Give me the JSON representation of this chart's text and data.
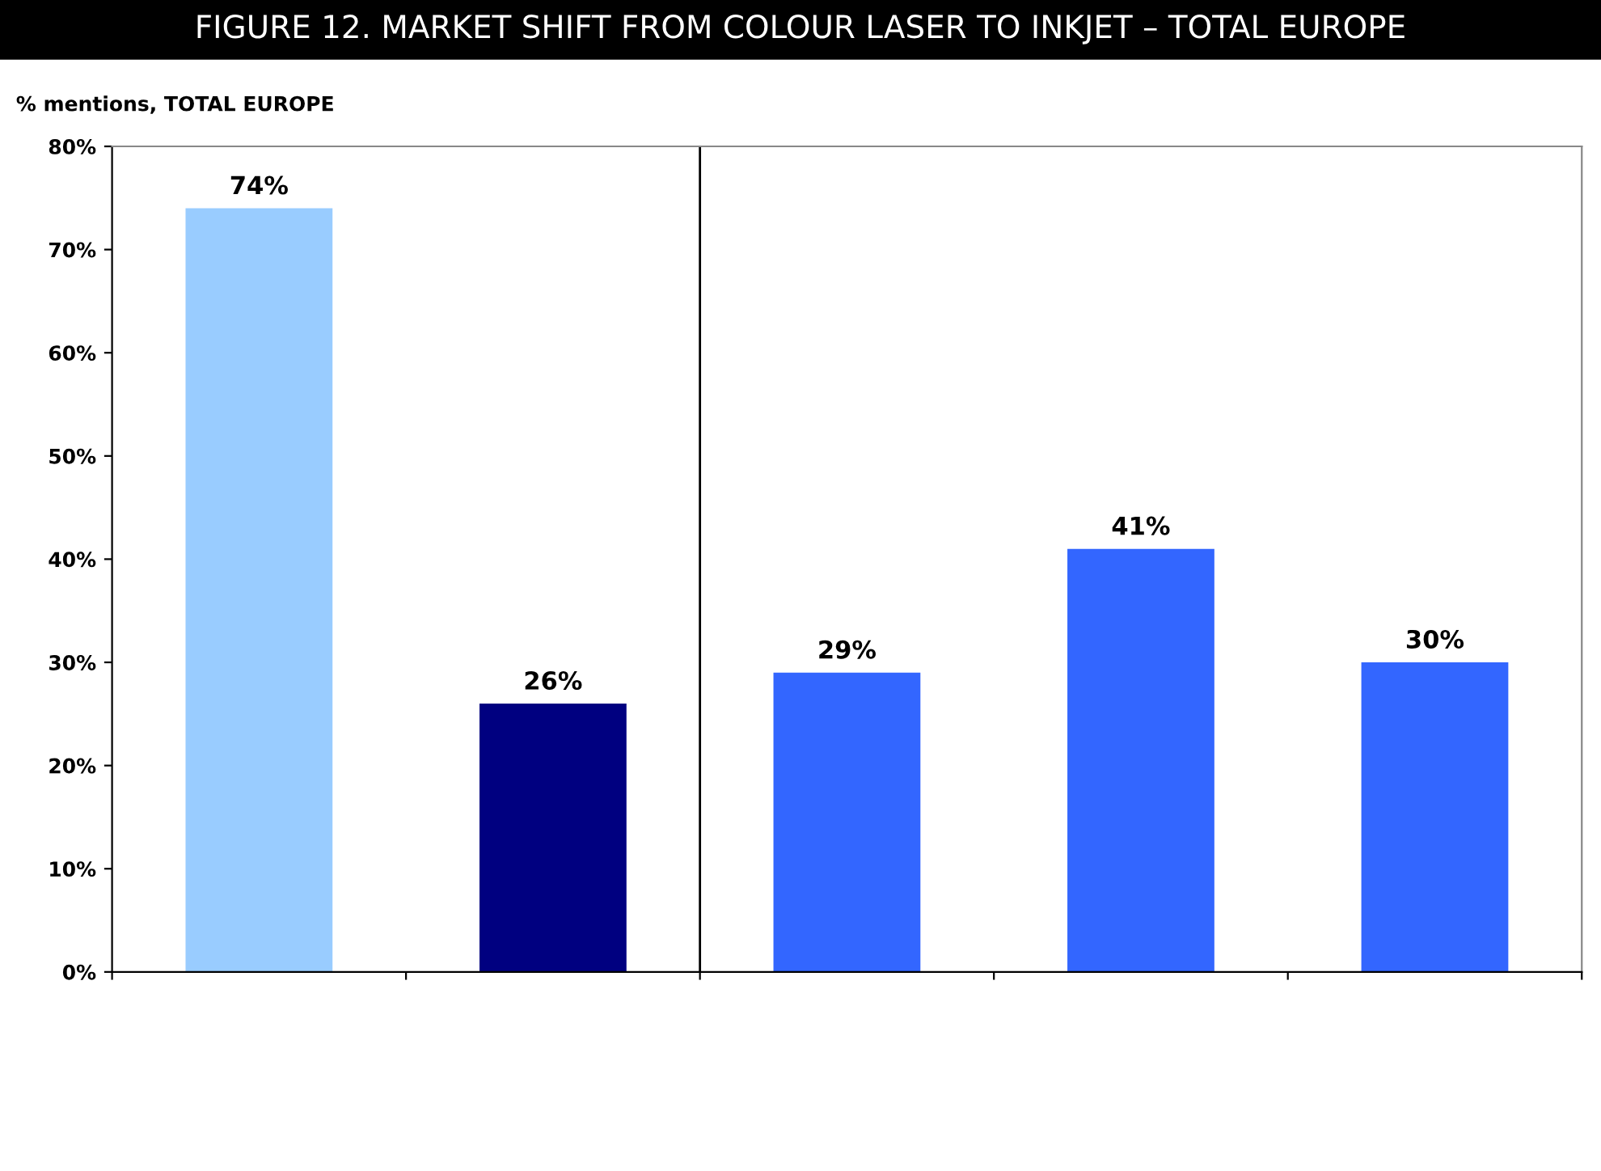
{
  "chart_data": {
    "type": "bar",
    "title": "FIGURE 12. MARKET SHIFT FROM COLOUR LASER TO INKJET – TOTAL EUROPE",
    "ylabel": "% mentions, TOTAL EUROPE",
    "categories": [
      null,
      null,
      null,
      null,
      null
    ],
    "values": [
      74,
      26,
      29,
      41,
      30
    ],
    "colors": [
      "#99ccff",
      "#000080",
      "#3366ff",
      "#3366ff",
      "#3366ff"
    ],
    "value_labels": [
      "74%",
      "26%",
      "29%",
      "41%",
      "30%"
    ],
    "ylim": [
      0,
      80
    ],
    "yticks": [
      {
        "value": 0,
        "label": "0%"
      },
      {
        "value": 10,
        "label": "10%"
      },
      {
        "value": 20,
        "label": "20%"
      },
      {
        "value": 30,
        "label": "30%"
      },
      {
        "value": 40,
        "label": "40%"
      },
      {
        "value": 50,
        "label": "50%"
      },
      {
        "value": 60,
        "label": "60%"
      },
      {
        "value": 70,
        "label": "70%"
      },
      {
        "value": 80,
        "label": "80%"
      }
    ],
    "grid": false,
    "legend": false
  }
}
